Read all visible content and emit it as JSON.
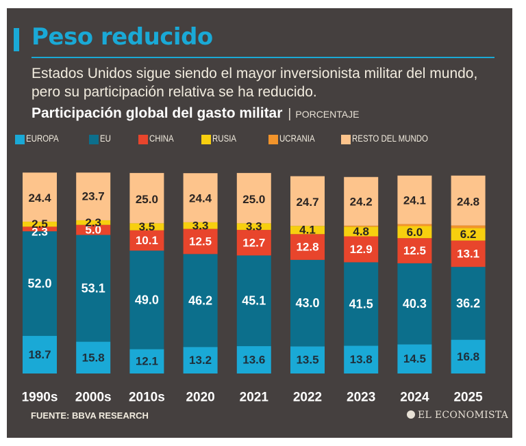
{
  "title": "Peso reducido",
  "subtitle": "Estados Unidos sigue siendo el mayor inversionista militar del mundo, pero su participación relativa se ha reducido.",
  "chart_title": "Participación global del gasto militar",
  "chart_separator": "|",
  "chart_unit": "PORCENTAJE",
  "source": "FUENTE: BBVA RESEARCH",
  "brand": "EL ECONOMISTA",
  "colors": {
    "background": "#45403f",
    "accent": "#1aa9d6",
    "europa": "#1aa9d6",
    "eu": "#0c6f8c",
    "china": "#e8452c",
    "rusia": "#f7cf0f",
    "ucrania": "#f2942b",
    "resto": "#fdc48c"
  },
  "chart_data": {
    "type": "bar",
    "stacked": true,
    "categories": [
      "1990s",
      "2000s",
      "2010s",
      "2020",
      "2021",
      "2022",
      "2023",
      "2024",
      "2025"
    ],
    "series": [
      {
        "name": "EUROPA",
        "color": "#1aa9d6",
        "labels": [
          "18.7",
          "15.8",
          "12.1",
          "13.2",
          "13.6",
          "13.5",
          "13.8",
          "14.5",
          "16.8"
        ],
        "values": [
          18.7,
          15.8,
          12.1,
          13.2,
          13.6,
          13.5,
          13.8,
          14.5,
          16.8
        ]
      },
      {
        "name": "EU",
        "color": "#0c6f8c",
        "labels": [
          "52.0",
          "53.1",
          "49.0",
          "46.2",
          "45.1",
          "43.0",
          "41.5",
          "40.3",
          "36.2"
        ],
        "values": [
          52.0,
          53.1,
          49.0,
          46.2,
          45.1,
          43.0,
          41.5,
          40.3,
          36.2
        ]
      },
      {
        "name": "CHINA",
        "color": "#e8452c",
        "labels": [
          "2.3",
          "5.0",
          "10.1",
          "12.5",
          "12.7",
          "12.8",
          "12.9",
          "12.5",
          "13.1"
        ],
        "values": [
          2.3,
          5.0,
          10.1,
          12.5,
          12.7,
          12.8,
          12.9,
          12.5,
          13.1
        ]
      },
      {
        "name": "RUSIA",
        "color": "#f7cf0f",
        "labels": [
          "2.5",
          "2.3",
          "3.5",
          "3.3",
          "3.3",
          "4.1",
          "4.8",
          "6.0",
          "6.2"
        ],
        "values": [
          2.5,
          2.3,
          3.5,
          3.3,
          3.3,
          4.1,
          4.8,
          6.0,
          6.2
        ]
      },
      {
        "name": "UCRANIA",
        "color": "#f2942b",
        "labels": [
          "",
          "",
          "",
          "",
          "",
          "",
          "",
          "",
          ""
        ],
        "values": [
          0,
          0,
          0,
          0,
          0,
          0,
          0.5,
          1.0,
          1.3
        ]
      },
      {
        "name": "RESTO DEL MUNDO",
        "color": "#fdc48c",
        "labels": [
          "24.4",
          "23.7",
          "25.0",
          "24.4",
          "25.0",
          "24.7",
          "24.2",
          "24.1",
          "24.8"
        ],
        "values": [
          24.4,
          23.7,
          25.0,
          24.4,
          25.0,
          24.7,
          24.2,
          24.1,
          24.8
        ]
      }
    ],
    "ylim": [
      0,
      100
    ],
    "grid": false,
    "legend": "top"
  }
}
